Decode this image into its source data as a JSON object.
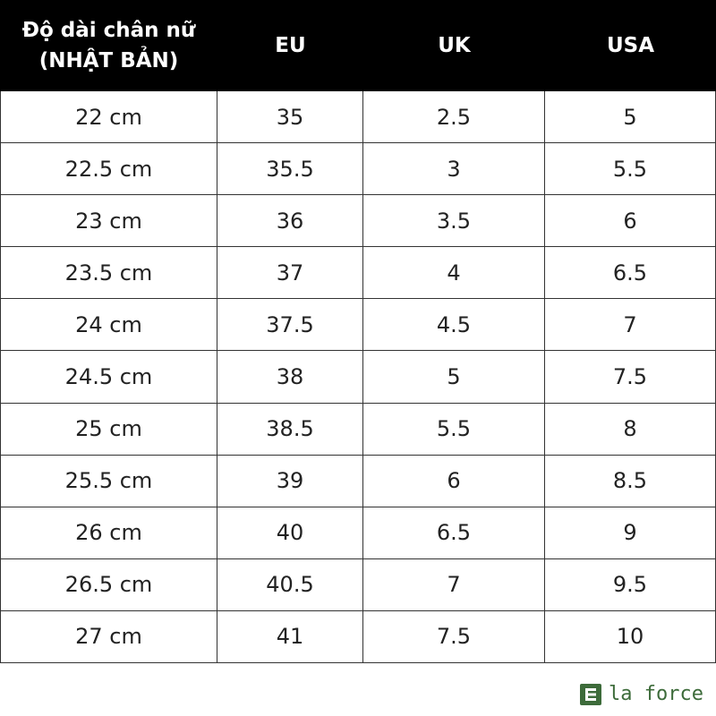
{
  "table": {
    "header": [
      [
        "Độ dài chân nữ",
        "(NHẬT BẢN)"
      ],
      [
        "EU"
      ],
      [
        "UK"
      ],
      [
        "USA"
      ]
    ],
    "rows": [
      [
        "22 cm",
        "35",
        "2.5",
        "5"
      ],
      [
        "22.5 cm",
        "35.5",
        "3",
        "5.5"
      ],
      [
        "23 cm",
        "36",
        "3.5",
        "6"
      ],
      [
        "23.5 cm",
        "37",
        "4",
        "6.5"
      ],
      [
        "24 cm",
        "37.5",
        "4.5",
        "7"
      ],
      [
        "24.5 cm",
        "38",
        "5",
        "7.5"
      ],
      [
        "25 cm",
        "38.5",
        "5.5",
        "8"
      ],
      [
        "25.5 cm",
        "39",
        "6",
        "8.5"
      ],
      [
        "26 cm",
        "40",
        "6.5",
        "9"
      ],
      [
        "26.5 cm",
        "40.5",
        "7",
        "9.5"
      ],
      [
        "27 cm",
        "41",
        "7.5",
        "10"
      ]
    ]
  },
  "brand": "la force"
}
